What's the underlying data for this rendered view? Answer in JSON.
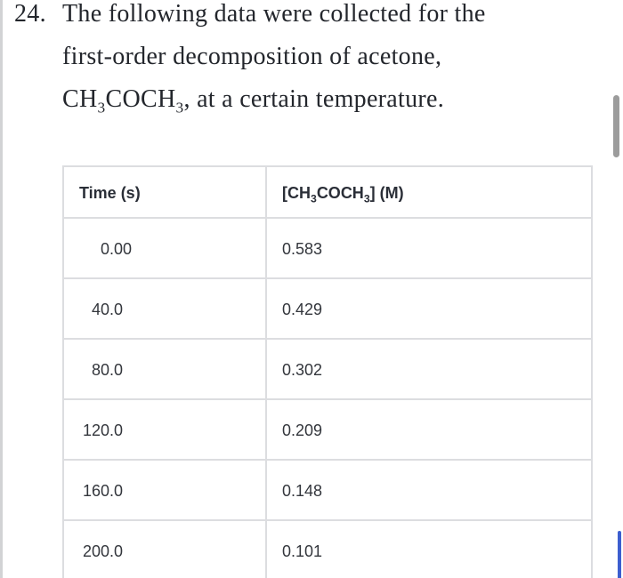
{
  "problem": {
    "number": "24.",
    "line1": "The following data were collected for the",
    "line2": "first-order decomposition of acetone,",
    "line3_rich": [
      {
        "text": "CH"
      },
      {
        "sub": "3"
      },
      {
        "text": "COCH"
      },
      {
        "sub": "3"
      },
      {
        "text": ", at a certain temperature."
      }
    ]
  },
  "table": {
    "columns": {
      "time_header": "Time (s)",
      "conc_header_rich": [
        {
          "text": "[CH"
        },
        {
          "sub": "3"
        },
        {
          "text": "COCH"
        },
        {
          "sub": "3"
        },
        {
          "text": "] (M)"
        }
      ]
    },
    "rows": [
      {
        "time": "0.00",
        "conc": "0.583"
      },
      {
        "time": "40.0",
        "conc": "0.429"
      },
      {
        "time": "80.0",
        "conc": "0.302"
      },
      {
        "time": "120.0",
        "conc": "0.209"
      },
      {
        "time": "160.0",
        "conc": "0.148"
      },
      {
        "time": "200.0",
        "conc": "0.101"
      }
    ]
  },
  "scrollbar": {
    "thumb_color": "#9c9c9c",
    "accent_color": "#3c5ecf"
  },
  "colors": {
    "body_text": "#23262c",
    "table_text": "#33363c",
    "table_border": "#dcdde0",
    "left_edge": "#d2d3d5",
    "background": "#ffffff"
  }
}
